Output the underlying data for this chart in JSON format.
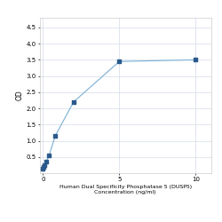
{
  "x": [
    0,
    0.05,
    0.1,
    0.2,
    0.4,
    0.8,
    2,
    5,
    10
  ],
  "y": [
    0.15,
    0.2,
    0.25,
    0.35,
    0.55,
    1.15,
    2.2,
    3.45,
    3.5
  ],
  "xlabel_line1": "Human Dual Specificity Phosphatase 5 (DUSP5)",
  "xlabel_line2": "Concentration (ng/ml)",
  "ylabel": "OD",
  "xlim": [
    -0.2,
    11
  ],
  "ylim": [
    0,
    4.8
  ],
  "yticks": [
    0.5,
    1.0,
    1.5,
    2.0,
    2.5,
    3.0,
    3.5,
    4.0,
    4.5
  ],
  "xticks": [
    0,
    5,
    10
  ],
  "line_color": "#7aafd4",
  "marker_color": "#2a5a8c",
  "marker_size": 3.5,
  "line_width": 0.8,
  "grid_color": "#d4dce8",
  "bg_color": "#ffffff",
  "label_fontsize": 4.5,
  "tick_fontsize": 5
}
